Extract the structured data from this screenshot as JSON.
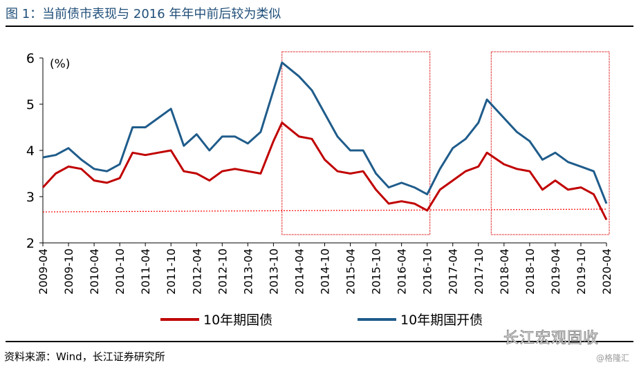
{
  "title": "图 1：当前债市表现与 2016 年年中前后较为类似",
  "source": "资料来源：Wind，长江证券研究所",
  "watermark": "长江宏观固收",
  "watermark2": "@格隆汇",
  "chart_data": {
    "type": "line",
    "ylabel": "(%)",
    "ylim": [
      2,
      6
    ],
    "yticks": [
      2,
      3,
      4,
      5,
      6
    ],
    "xticks": [
      "2009-04",
      "2009-10",
      "2010-04",
      "2010-10",
      "2011-04",
      "2011-10",
      "2012-04",
      "2012-10",
      "2013-04",
      "2013-10",
      "2014-04",
      "2014-10",
      "2015-04",
      "2015-10",
      "2016-04",
      "2016-10",
      "2017-04",
      "2017-10",
      "2018-04",
      "2018-10",
      "2019-04",
      "2019-10",
      "2020-04"
    ],
    "x": [
      "2009-04",
      "2009-07",
      "2009-10",
      "2010-01",
      "2010-04",
      "2010-07",
      "2010-10",
      "2011-01",
      "2011-04",
      "2011-07",
      "2011-10",
      "2012-01",
      "2012-04",
      "2012-07",
      "2012-10",
      "2013-01",
      "2013-04",
      "2013-07",
      "2013-10",
      "2013-12",
      "2014-04",
      "2014-07",
      "2014-10",
      "2015-01",
      "2015-04",
      "2015-07",
      "2015-10",
      "2016-01",
      "2016-04",
      "2016-07",
      "2016-10",
      "2017-01",
      "2017-04",
      "2017-07",
      "2017-10",
      "2017-12",
      "2018-04",
      "2018-07",
      "2018-10",
      "2019-01",
      "2019-04",
      "2019-07",
      "2019-10",
      "2020-01",
      "2020-04"
    ],
    "series": [
      {
        "name": "10年期国债",
        "color": "#c00000",
        "values": [
          3.2,
          3.5,
          3.65,
          3.6,
          3.35,
          3.3,
          3.4,
          3.95,
          3.9,
          3.95,
          4.0,
          3.55,
          3.5,
          3.35,
          3.55,
          3.6,
          3.55,
          3.5,
          4.2,
          4.6,
          4.3,
          4.25,
          3.8,
          3.55,
          3.5,
          3.55,
          3.15,
          2.85,
          2.9,
          2.85,
          2.7,
          3.15,
          3.35,
          3.55,
          3.65,
          3.95,
          3.7,
          3.6,
          3.55,
          3.15,
          3.35,
          3.15,
          3.2,
          3.05,
          2.5
        ]
      },
      {
        "name": "10年期国开债",
        "color": "#1f5c8b",
        "values": [
          3.85,
          3.9,
          4.05,
          3.8,
          3.6,
          3.55,
          3.7,
          4.5,
          4.5,
          4.7,
          4.9,
          4.1,
          4.35,
          4.0,
          4.3,
          4.3,
          4.15,
          4.4,
          5.3,
          5.9,
          5.6,
          5.3,
          4.8,
          4.3,
          4.0,
          4.0,
          3.5,
          3.2,
          3.3,
          3.2,
          3.05,
          3.6,
          4.05,
          4.25,
          4.6,
          5.1,
          4.7,
          4.4,
          4.2,
          3.8,
          3.95,
          3.75,
          3.65,
          3.55,
          2.85
        ]
      }
    ],
    "reference_line": {
      "from": 2.67,
      "to": 2.73,
      "color": "#ff0000"
    },
    "highlight_boxes": [
      {
        "from": "2013-12",
        "to": "2016-10"
      },
      {
        "from": "2018-01",
        "to": "2020-04"
      }
    ],
    "legend": "bottom"
  }
}
